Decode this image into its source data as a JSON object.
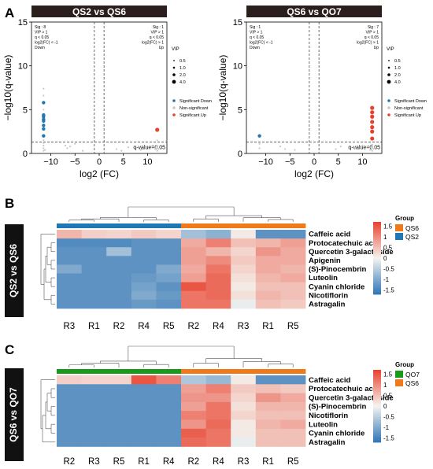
{
  "panels": {
    "a": {
      "letter": "A"
    },
    "b": {
      "letter": "B",
      "side_label": "QS2 vs QS6"
    },
    "c": {
      "letter": "C",
      "side_label": "QS6 vs QO7"
    }
  },
  "colors": {
    "down": "#1f77b4",
    "up": "#e8422e",
    "nonsig": "#c8c8c8",
    "title_bg": "#2a1f1c",
    "heat_low": "#2f74b5",
    "heat_mid": "#f5f5f0",
    "heat_high": "#e8402d",
    "qs2": "#1f77b4",
    "qs6": "#f07a1a",
    "qo7": "#1a9a1a"
  },
  "chart_data": [
    {
      "type": "scatter",
      "title": "QS2 vs QS6",
      "xlabel": "log2 (FC)",
      "ylabel": "−log10(q-value)",
      "xlim": [
        -14,
        14
      ],
      "ylim": [
        0,
        15
      ],
      "xticks": [
        "−10",
        "−5",
        "0",
        "5",
        "10"
      ],
      "xtick_values": [
        -10,
        -5,
        0,
        5,
        10
      ],
      "yticks": [
        "0",
        "5",
        "10",
        "15"
      ],
      "ytick_values": [
        0,
        5,
        10,
        15
      ],
      "threshold_x": [
        -1,
        1
      ],
      "threshold_y": 1.3,
      "threshold_label": "q-value=0.05",
      "down_box": [
        "Sig : 8",
        "VIP > 1",
        "q < 0.05",
        "log2(FC) < -1",
        "Down"
      ],
      "up_box": [
        "Sig : 1",
        "VIP > 1",
        "q < 0.05",
        "log2(FC) > 1",
        "Up"
      ],
      "legend": {
        "vip_title": "VIP",
        "vip_sizes": [
          "0.5",
          "1.0",
          "2.0",
          "4.0"
        ],
        "groups": [
          "Significant Down",
          "Non-significant",
          "Significant Up"
        ]
      },
      "points": {
        "down": [
          [
            -11.5,
            5.8
          ],
          [
            -11.5,
            4.4
          ],
          [
            -11.5,
            4.2
          ],
          [
            -11.5,
            3.9
          ],
          [
            -11.5,
            3.7
          ],
          [
            -11.5,
            3.2
          ],
          [
            -11.5,
            2.8
          ],
          [
            -11.5,
            2.0
          ]
        ],
        "up": [
          [
            12,
            2.7
          ]
        ],
        "nonsig": [
          [
            -11.5,
            7.4
          ],
          [
            -11.5,
            6.6
          ],
          [
            -11.5,
            5.0
          ],
          [
            -11.5,
            1.5
          ],
          [
            -11.5,
            1.2
          ],
          [
            -11.5,
            0.9
          ],
          [
            -11.5,
            0.6
          ],
          [
            -11.5,
            0.3
          ],
          [
            -11.2,
            0.4
          ],
          [
            -7,
            0.9
          ],
          [
            -6.6,
            0.6
          ],
          [
            -6,
            0.8
          ],
          [
            -5,
            1.1
          ],
          [
            -3.4,
            0.3
          ],
          [
            12,
            1.5
          ],
          [
            12,
            0.9
          ],
          [
            12,
            0.6
          ],
          [
            12,
            0.3
          ],
          [
            11.6,
            0.5
          ],
          [
            10.5,
            0.6
          ],
          [
            8.6,
            0.4
          ],
          [
            6,
            0.7
          ],
          [
            4.6,
            0.3
          ],
          [
            3.6,
            0.5
          ]
        ]
      }
    },
    {
      "type": "scatter",
      "title": "QS6 vs QO7",
      "xlabel": "log2 (FC)",
      "ylabel": "−log10(q-value)",
      "xlim": [
        -14,
        14
      ],
      "ylim": [
        0,
        15
      ],
      "xticks": [
        "−10",
        "−5",
        "0",
        "5",
        "10"
      ],
      "xtick_values": [
        -10,
        -5,
        0,
        5,
        10
      ],
      "yticks": [
        "0",
        "5",
        "10",
        "15"
      ],
      "ytick_values": [
        0,
        5,
        10,
        15
      ],
      "threshold_x": [
        -1,
        1
      ],
      "threshold_y": 1.3,
      "threshold_label": "q-value=0.05",
      "down_box": [
        "Sig : 1",
        "VIP > 1",
        "q < 0.05",
        "log2(FC) < -1",
        "Down"
      ],
      "up_box": [
        "Sig : 7",
        "VIP > 1",
        "q < 0.05",
        "log2(FC) > 1",
        "Up"
      ],
      "legend": {
        "vip_title": "VIP",
        "vip_sizes": [
          "0.5",
          "1.0",
          "2.0",
          "4.0"
        ],
        "groups": [
          "Significant Down",
          "Non-significant",
          "Significant Up"
        ]
      },
      "points": {
        "down": [
          [
            -11.3,
            2.0
          ]
        ],
        "up": [
          [
            12,
            5.2
          ],
          [
            12,
            4.7
          ],
          [
            12,
            4.2
          ],
          [
            12,
            3.6
          ],
          [
            12,
            3.0
          ],
          [
            12,
            2.5
          ],
          [
            12,
            1.7
          ]
        ],
        "nonsig": [
          [
            -11.3,
            1.1
          ],
          [
            -11.3,
            0.6
          ],
          [
            -7,
            0.8
          ],
          [
            -6,
            0.5
          ],
          [
            -4,
            0.4
          ],
          [
            4.5,
            0.5
          ],
          [
            5.5,
            0.8
          ],
          [
            8.5,
            0.6
          ],
          [
            10,
            0.9
          ],
          [
            11,
            0.8
          ],
          [
            12,
            1.0
          ],
          [
            12,
            0.6
          ],
          [
            12,
            0.3
          ],
          [
            11.6,
            0.4
          ]
        ]
      }
    },
    {
      "type": "heatmap",
      "rows": [
        "Caffeic acid",
        "Protocatechuic acid",
        "Quercetin 3-galactoside",
        "Apigenin",
        "(S)-Pinocembrin",
        "Luteolin",
        "Cyanin chloride",
        "Nicotiflorin",
        "Astragalin"
      ],
      "columns": [
        "R3",
        "R1",
        "R2",
        "R4",
        "R5",
        "R2",
        "R4",
        "R3",
        "R1",
        "R5"
      ],
      "column_groups": [
        "QS2",
        "QS2",
        "QS2",
        "QS2",
        "QS2",
        "QS6",
        "QS6",
        "QS6",
        "QS6",
        "QS6"
      ],
      "legend_title": "Group",
      "legend_groups": [
        "QS6",
        "QS2"
      ],
      "scale_ticks": [
        "1.5",
        "1",
        "0.5",
        "0",
        "-0.5",
        "-1",
        "-1.5"
      ],
      "scale_values": [
        1.5,
        1,
        0.5,
        0,
        -0.5,
        -1,
        -1.5
      ],
      "zlim": [
        -1.7,
        1.7
      ],
      "values": [
        [
          0.6,
          0.35,
          0.3,
          0.4,
          0.3,
          -0.7,
          -0.9,
          0.1,
          -1.3,
          -1.3
        ],
        [
          -1.4,
          -1.4,
          -1.4,
          -1.3,
          -1.3,
          0.7,
          1.1,
          0.5,
          0.6,
          0.8
        ],
        [
          -1.3,
          -1.3,
          -0.7,
          -1.3,
          -1.3,
          0.8,
          0.6,
          0.3,
          0.9,
          0.7
        ],
        [
          -1.3,
          -1.3,
          -1.3,
          -1.3,
          -1.3,
          0.8,
          1.0,
          0.4,
          0.7,
          0.7
        ],
        [
          -1.0,
          -1.3,
          -1.3,
          -1.3,
          -1.0,
          0.7,
          1.2,
          0.3,
          0.7,
          0.6
        ],
        [
          -1.3,
          -1.3,
          -1.3,
          -1.2,
          -1.1,
          0.8,
          1.3,
          0.2,
          0.6,
          0.7
        ],
        [
          -1.3,
          -1.3,
          -1.3,
          -1.1,
          -1.3,
          1.5,
          1.3,
          0.1,
          0.5,
          0.5
        ],
        [
          -1.3,
          -1.3,
          -1.3,
          -1.0,
          -1.2,
          1.2,
          1.3,
          0.2,
          0.6,
          0.5
        ],
        [
          -1.3,
          -1.3,
          -1.3,
          -1.2,
          -1.3,
          1.2,
          1.2,
          -0.1,
          0.5,
          0.4
        ]
      ]
    },
    {
      "type": "heatmap",
      "rows": [
        "Caffeic acid",
        "Protocatechuic acid",
        "Quercetin 3-galactoside",
        "(S)-Pinocembrin",
        "Nicotiflorin",
        "Luteolin",
        "Cyanin chloride",
        "Astragalin"
      ],
      "columns": [
        "R2",
        "R3",
        "R5",
        "R1",
        "R4",
        "R2",
        "R4",
        "R3",
        "R1",
        "R5"
      ],
      "column_groups": [
        "QO7",
        "QO7",
        "QO7",
        "QO7",
        "QO7",
        "QS6",
        "QS6",
        "QS6",
        "QS6",
        "QS6"
      ],
      "legend_title": "Group",
      "legend_groups": [
        "QO7",
        "QS6"
      ],
      "scale_ticks": [
        "1.5",
        "1",
        "0.5",
        "0",
        "-0.5",
        "-1",
        "-1.5"
      ],
      "scale_values": [
        1.5,
        1,
        0.5,
        0,
        -0.5,
        -1,
        -1.5
      ],
      "zlim": [
        -1.7,
        1.7
      ],
      "values": [
        [
          0.35,
          0.3,
          0.3,
          1.5,
          1.1,
          -0.6,
          -0.8,
          0.1,
          -1.3,
          -1.3
        ],
        [
          -1.3,
          -1.3,
          -1.3,
          -1.3,
          -1.3,
          0.8,
          1.1,
          0.4,
          0.5,
          0.4
        ],
        [
          -1.3,
          -1.3,
          -1.3,
          -1.3,
          -1.3,
          0.9,
          0.9,
          0.3,
          0.9,
          0.7
        ],
        [
          -1.3,
          -1.3,
          -1.3,
          -1.3,
          -1.3,
          0.8,
          1.2,
          0.2,
          0.6,
          0.6
        ],
        [
          -1.3,
          -1.3,
          -1.3,
          -1.3,
          -1.3,
          1.1,
          1.2,
          0.3,
          0.5,
          0.5
        ],
        [
          -1.3,
          -1.3,
          -1.3,
          -1.3,
          -1.3,
          0.9,
          1.3,
          0.1,
          0.6,
          0.7
        ],
        [
          -1.3,
          -1.3,
          -1.3,
          -1.3,
          -1.3,
          1.4,
          1.2,
          0.1,
          0.5,
          0.5
        ],
        [
          -1.3,
          -1.3,
          -1.3,
          -1.3,
          -1.3,
          1.3,
          1.2,
          -0.1,
          0.5,
          0.5
        ]
      ]
    }
  ]
}
